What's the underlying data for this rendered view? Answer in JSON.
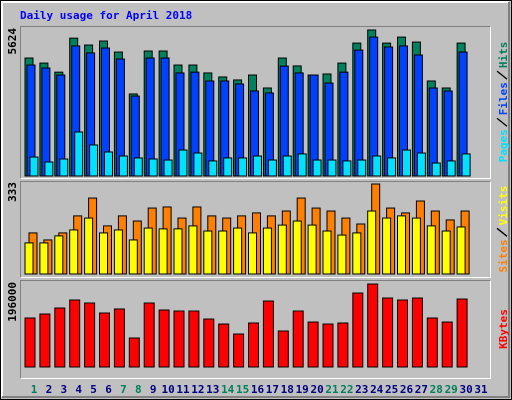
{
  "chart_data": [
    {
      "type": "bar",
      "title": "Daily usage for April 2018",
      "series": [
        {
          "name": "Pages",
          "color": "#00e0ff",
          "values": [
            730,
            540,
            655,
            1695,
            1195,
            925,
            770,
            695,
            655,
            615,
            1000,
            885,
            580,
            695,
            695,
            770,
            615,
            770,
            850,
            615,
            615,
            580,
            615,
            770,
            695,
            1000,
            885,
            500,
            580,
            850,
            null
          ]
        },
        {
          "name": "Files",
          "color": "#0040ff",
          "values": [
            4275,
            4160,
            3890,
            5010,
            4740,
            4930,
            4505,
            3080,
            4545,
            4545,
            3970,
            4000,
            3660,
            3660,
            3545,
            3275,
            3200,
            4235,
            3970,
            3890,
            3580,
            4000,
            4850,
            5350,
            4970,
            5010,
            4660,
            3390,
            3275,
            4775,
            null
          ]
        },
        {
          "name": "Hits",
          "color": "#00805c",
          "values": [
            4545,
            4350,
            4000,
            5310,
            5045,
            5200,
            4775,
            3160,
            4815,
            4815,
            4275,
            4275,
            3970,
            3815,
            3700,
            3890,
            3390,
            4545,
            4240,
            3890,
            3930,
            4350,
            5120,
            5624,
            5120,
            5350,
            5160,
            3660,
            3390,
            5120,
            null
          ]
        }
      ],
      "ylim": [
        0,
        5624
      ],
      "yticks": [
        5624
      ]
    },
    {
      "type": "bar",
      "series": [
        {
          "name": "Sites",
          "color": "#ff8000",
          "values": [
            152,
            126,
            152,
            215,
            281,
            178,
            215,
            196,
            244,
            248,
            207,
            248,
            215,
            207,
            215,
            226,
            215,
            233,
            281,
            244,
            233,
            207,
            185,
            333,
            244,
            226,
            270,
            233,
            200,
            233,
            null
          ]
        },
        {
          "name": "Visits",
          "color": "#ffff00",
          "values": [
            115,
            115,
            141,
            163,
            207,
            152,
            163,
            126,
            170,
            167,
            167,
            178,
            159,
            159,
            170,
            152,
            170,
            181,
            196,
            181,
            159,
            144,
            152,
            233,
            207,
            215,
            207,
            178,
            159,
            174,
            null
          ]
        }
      ],
      "ylim": [
        0,
        333
      ],
      "yticks": [
        333
      ]
    },
    {
      "type": "bar",
      "series": [
        {
          "name": "KBytes",
          "color": "#ff0000",
          "values": [
            115700,
            125100,
            139300,
            158200,
            151100,
            127500,
            137000,
            68500,
            151100,
            134600,
            132200,
            132200,
            113300,
            101500,
            77900,
            103900,
            155800,
            85000,
            132200,
            106200,
            101500,
            103900,
            174700,
            196000,
            162900,
            158200,
            162900,
            115700,
            106200,
            160500,
            null
          ]
        }
      ],
      "ylim": [
        0,
        196000
      ],
      "yticks": [
        196000
      ],
      "categories": [
        "1",
        "2",
        "3",
        "4",
        "5",
        "6",
        "7",
        "8",
        "9",
        "10",
        "11",
        "12",
        "13",
        "14",
        "15",
        "16",
        "17",
        "18",
        "19",
        "20",
        "21",
        "22",
        "23",
        "24",
        "25",
        "26",
        "27",
        "28",
        "29",
        "30",
        "31"
      ],
      "category_colors": [
        "#00805c",
        "#000080",
        "#000080",
        "#000080",
        "#000080",
        "#000080",
        "#00805c",
        "#00805c",
        "#000080",
        "#000080",
        "#000080",
        "#000080",
        "#000080",
        "#00805c",
        "#00805c",
        "#000080",
        "#000080",
        "#000080",
        "#000080",
        "#000080",
        "#00805c",
        "#00805c",
        "#000080",
        "#000080",
        "#000080",
        "#000080",
        "#000080",
        "#00805c",
        "#00805c",
        "#000080",
        "#000080"
      ]
    }
  ]
}
